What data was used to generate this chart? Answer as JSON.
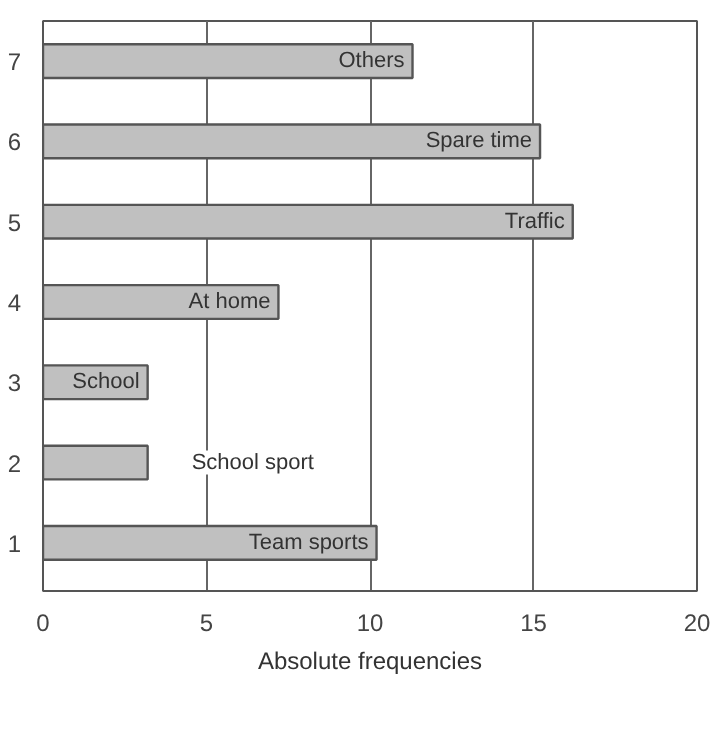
{
  "chart_data": {
    "type": "bar",
    "orientation": "horizontal",
    "xlabel": "Absolute frequencies",
    "categories": [
      "7",
      "6",
      "5",
      "4",
      "3",
      "2",
      "1"
    ],
    "values": [
      11.3,
      15.2,
      16.2,
      7.2,
      3.2,
      3.2,
      10.2
    ],
    "color": "#c0c0c0",
    "xlim": [
      0,
      20
    ],
    "xticks": [
      0,
      5,
      10,
      15,
      20
    ],
    "grid": "x",
    "annotations": [
      {
        "text": "Others",
        "x": 11.3,
        "y": "7"
      },
      {
        "text": "Spare time",
        "x": 15.2,
        "y": "6"
      },
      {
        "text": "Traffic",
        "x": 16.2,
        "y": "5"
      },
      {
        "text": "At home",
        "x": 7.2,
        "y": "4"
      },
      {
        "text": "School",
        "x": 3.2,
        "y": "3"
      },
      {
        "text": "School sport",
        "x": 3.2,
        "y": "2"
      },
      {
        "text": "Team sports",
        "x": 10.2,
        "y": "1"
      }
    ]
  }
}
